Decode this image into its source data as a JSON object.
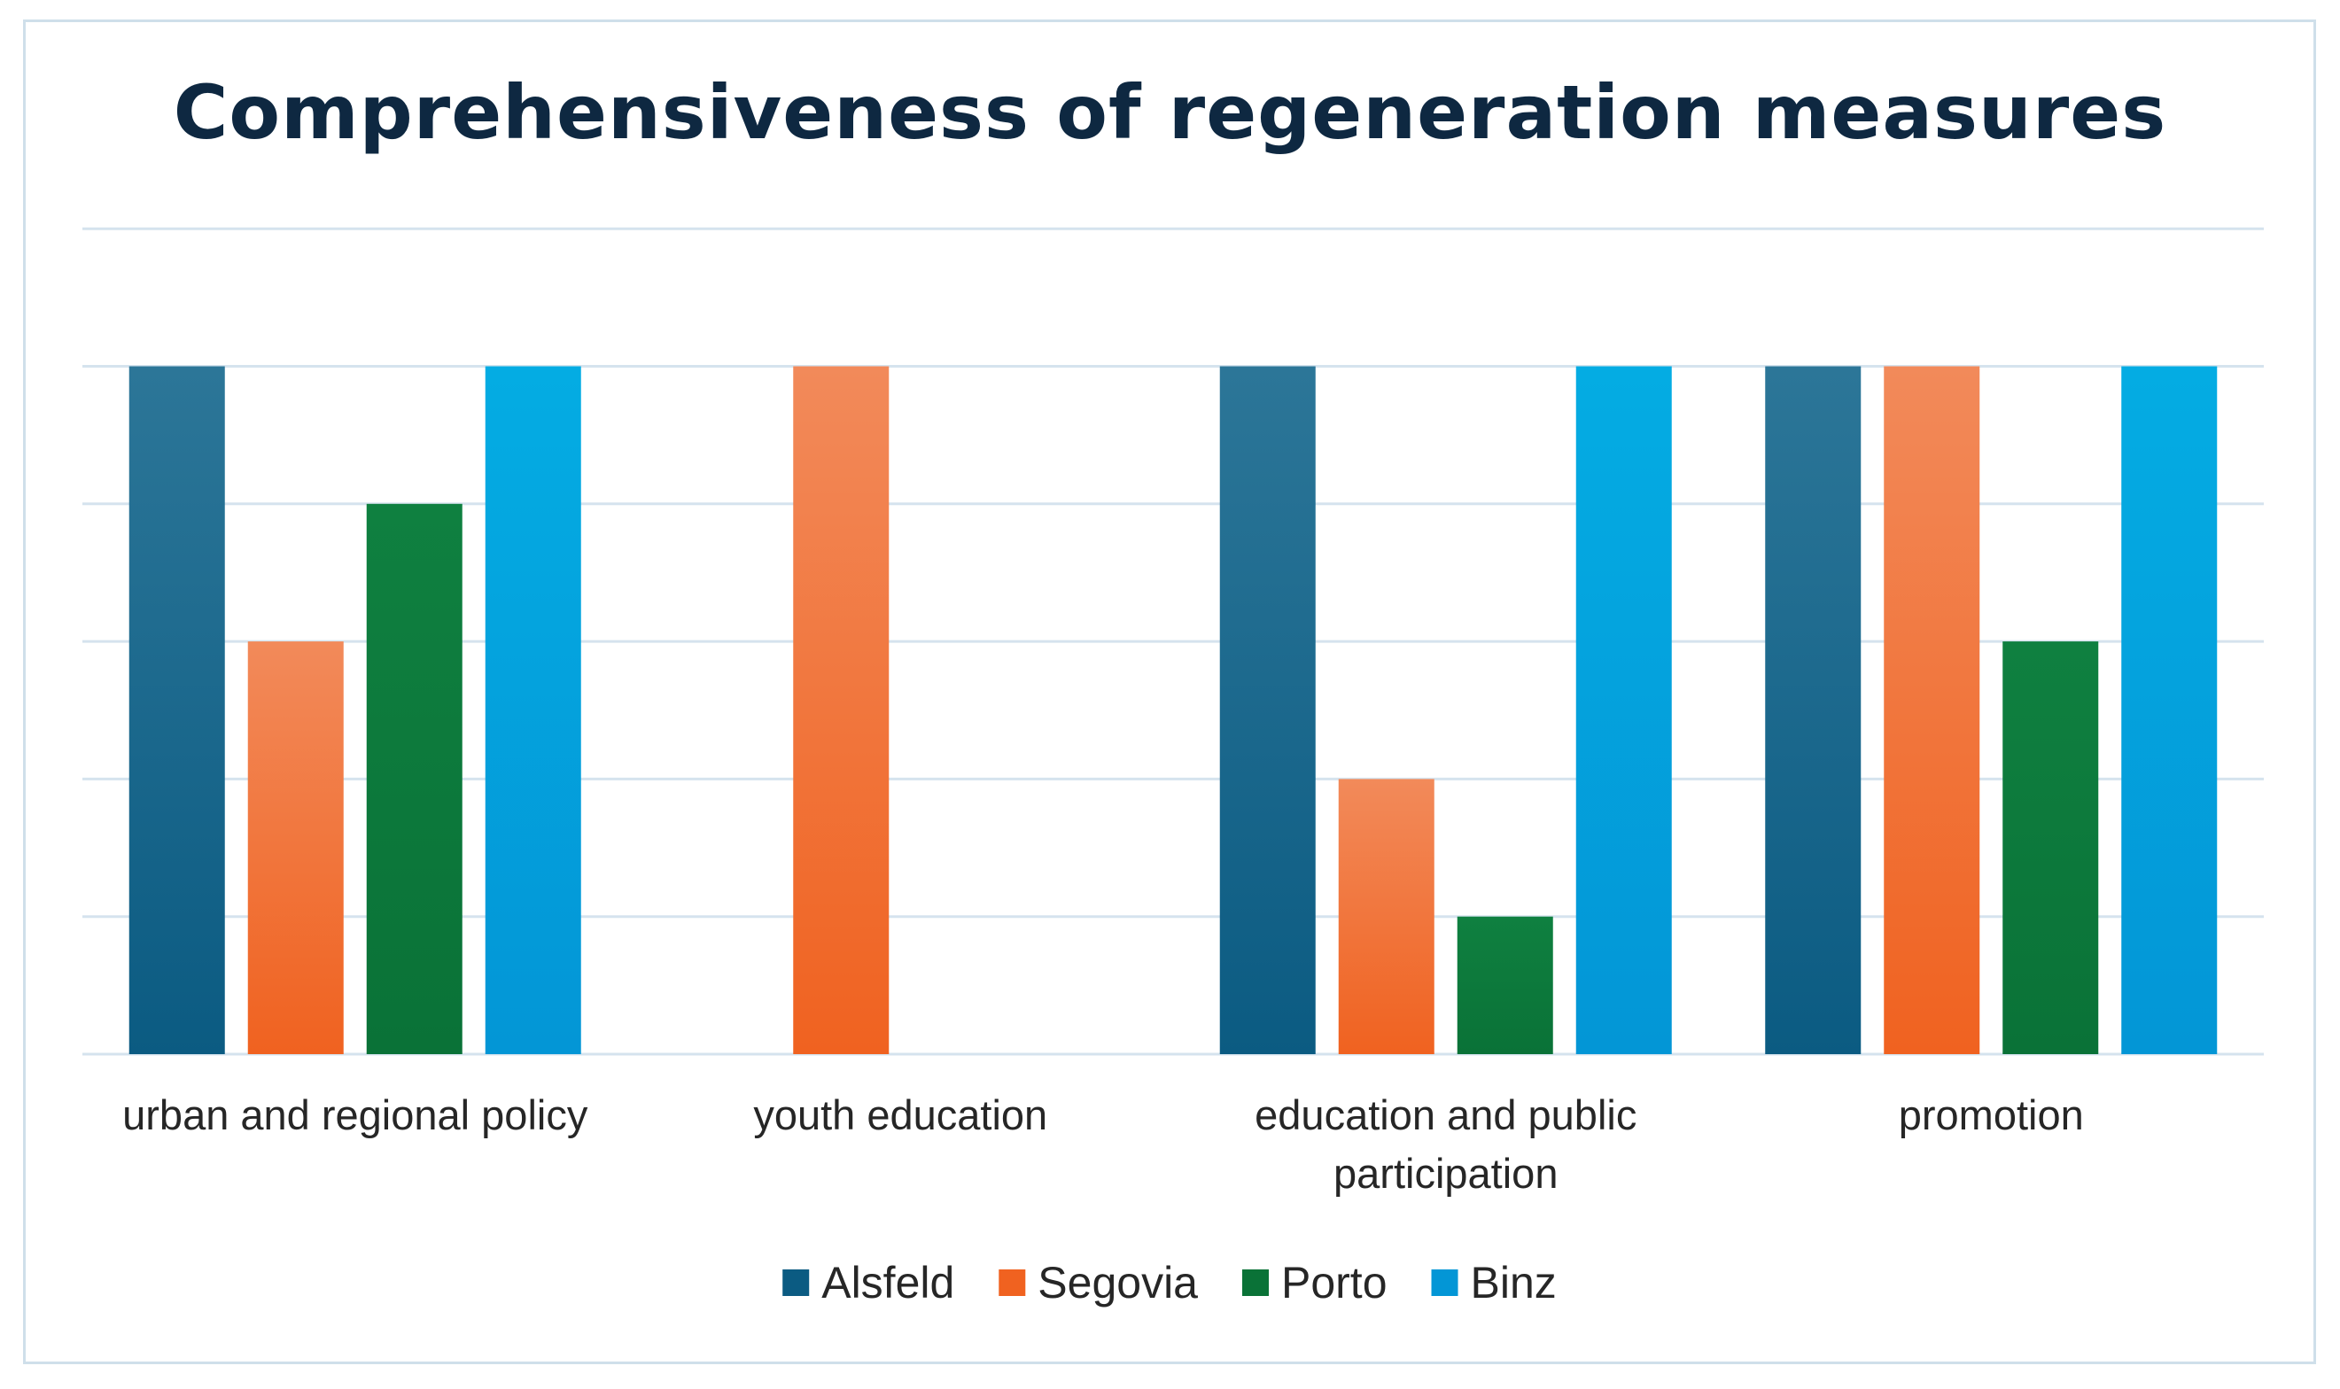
{
  "chart_data": {
    "type": "bar",
    "title": "Comprehensiveness of regeneration measures",
    "xlabel": "",
    "ylabel": "",
    "ylim": [
      0,
      6
    ],
    "y_gridlines": [
      0,
      1,
      2,
      3,
      4,
      5,
      6
    ],
    "grid": true,
    "legend_position": "bottom",
    "categories": [
      [
        "urban and regional policy"
      ],
      [
        "youth education"
      ],
      [
        "education and public",
        "participation"
      ],
      [
        "promotion"
      ]
    ],
    "series": [
      {
        "name": "Alsfeld",
        "color": "#0b5b82",
        "color_top": "#2c7698",
        "values": [
          5,
          0,
          5,
          5
        ]
      },
      {
        "name": "Segovia",
        "color": "#f06220",
        "color_top": "#f28a5a",
        "values": [
          3,
          5,
          2,
          5
        ]
      },
      {
        "name": "Porto",
        "color": "#0a7237",
        "color_top": "#0f8040",
        "values": [
          4,
          0,
          1,
          3
        ]
      },
      {
        "name": "Binz",
        "color": "#0396d6",
        "color_top": "#04ace3",
        "values": [
          5,
          0,
          5,
          5
        ]
      }
    ]
  }
}
